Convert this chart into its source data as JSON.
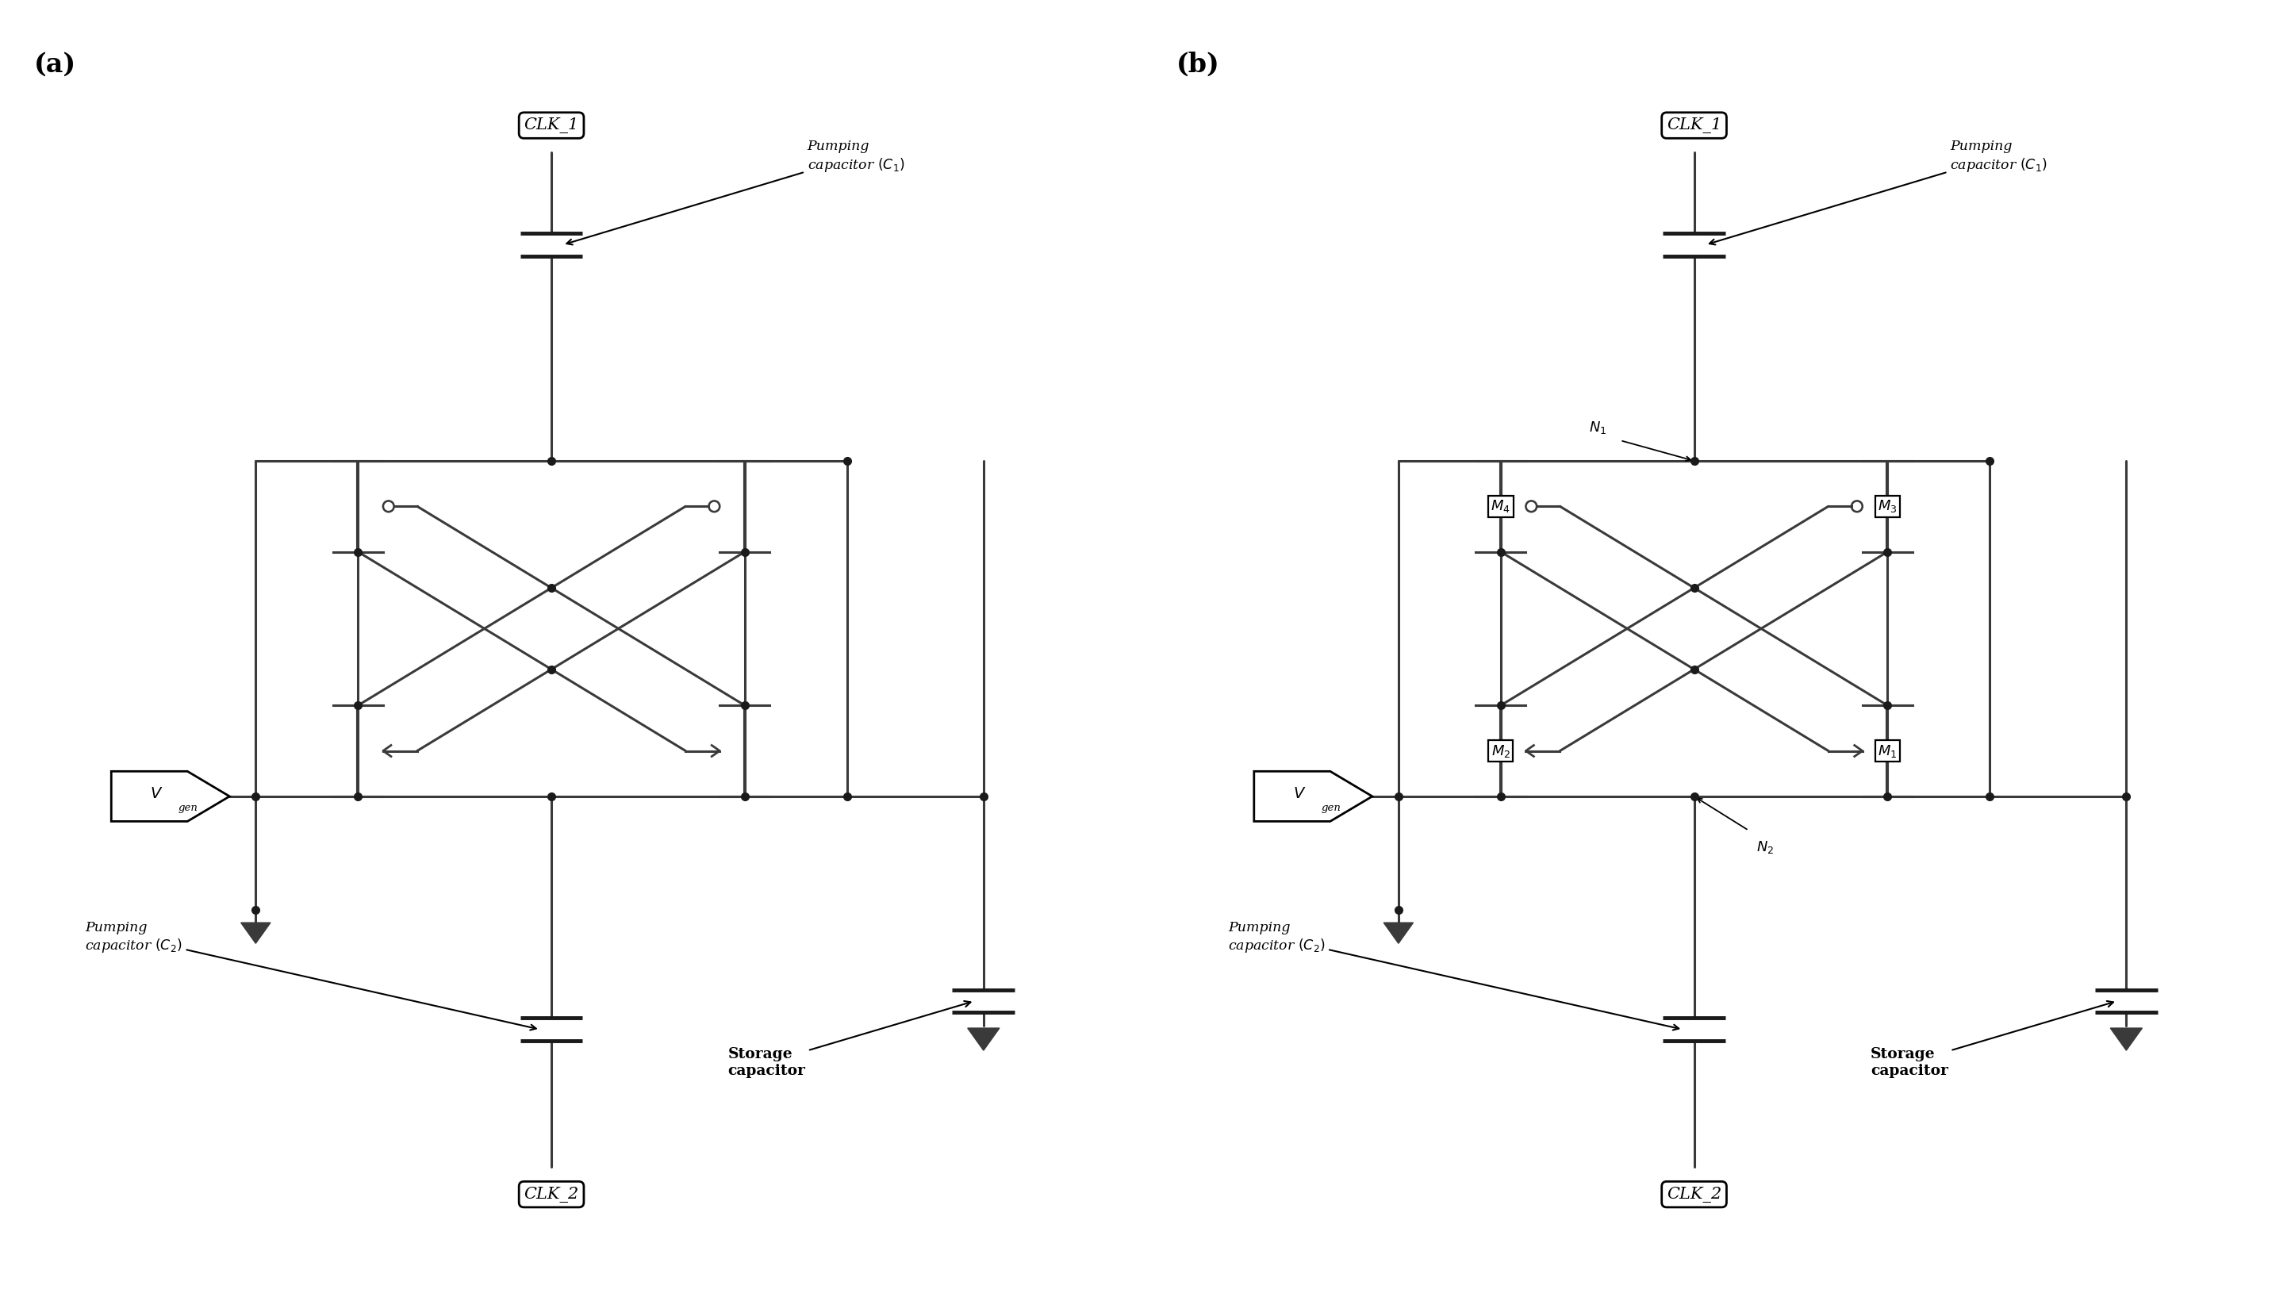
{
  "bg_color": "#ffffff",
  "line_color": "#4a4a4a",
  "line_width": 2.2,
  "dot_size": 7,
  "fig_width": 28.88,
  "fig_height": 16.35,
  "panel_a_label": "(a)",
  "panel_b_label": "(b)",
  "clk1_label": "CLK_1",
  "clk2_label": "CLK_2",
  "pumping_cap_c1": "Pumping\ncapacitor $(C_1)$",
  "pumping_cap_c2": "Pumping\ncapacitor $(C_2)$",
  "storage_cap": "Storage\ncapacitor",
  "m1_label": "$M_1$",
  "m2_label": "$M_2$",
  "m3_label": "$M_3$",
  "m4_label": "$M_4$",
  "n1_label": "$N_1$",
  "n2_label": "$N_2$"
}
